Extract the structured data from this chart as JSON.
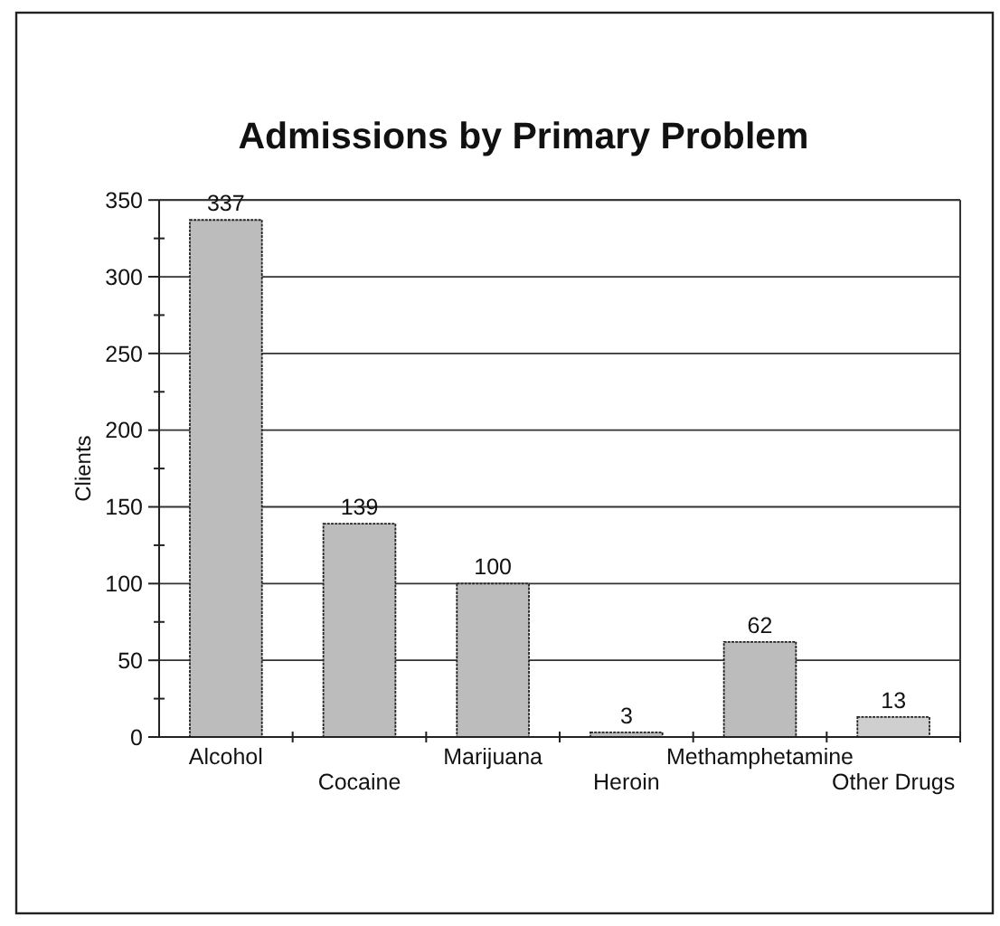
{
  "chart_data": {
    "type": "bar",
    "title": "Admissions by Primary Problem",
    "ylabel": "Clients",
    "categories": [
      "Alcohol",
      "Cocaine",
      "Marijuana",
      "Heroin",
      "Methamphetamine",
      "Other Drugs"
    ],
    "values": [
      337,
      139,
      100,
      3,
      62,
      13
    ],
    "colors": [
      "#bcbcbc",
      "#bcbcbc",
      "#bcbcbc",
      "#bcbcbc",
      "#bcbcbc",
      "#cfcfcf"
    ],
    "ylim": [
      0,
      350
    ],
    "yticks": [
      0,
      {
        "value": 25,
        "label": null
      },
      50,
      {
        "value": 75,
        "label": null
      },
      100,
      {
        "value": 125,
        "label": null
      },
      150,
      {
        "value": 175,
        "label": null
      },
      200,
      {
        "value": 225,
        "label": null
      },
      250,
      {
        "value": 275,
        "label": null
      },
      300,
      {
        "value": 325,
        "label": null
      },
      350
    ],
    "grid": "y",
    "data_labels": true
  }
}
